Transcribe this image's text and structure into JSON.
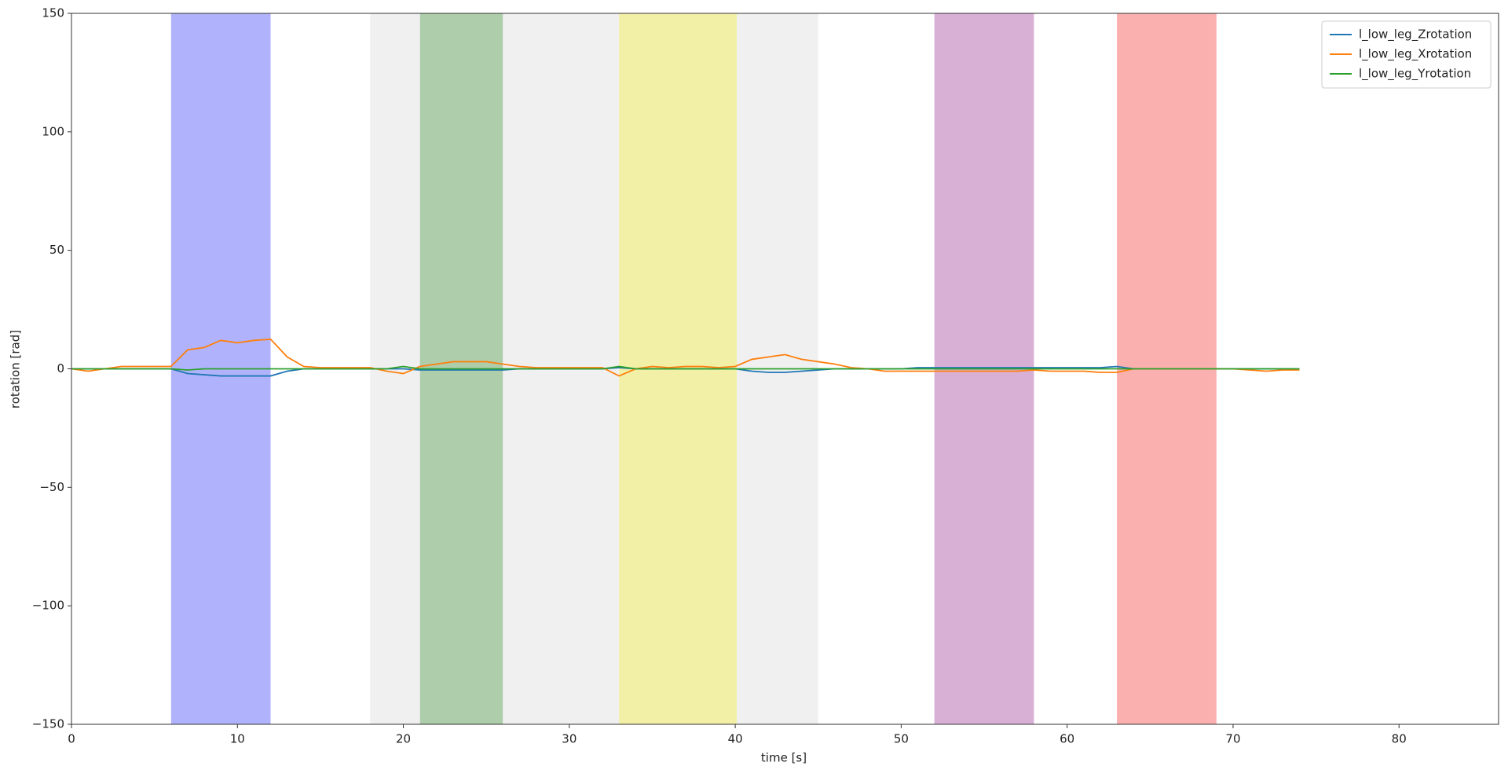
{
  "chart_data": {
    "type": "line",
    "xlabel": "time [s]",
    "ylabel": "rotation [rad]",
    "xlim": [
      0,
      86
    ],
    "ylim": [
      -150,
      150
    ],
    "xticks": [
      0,
      10,
      20,
      30,
      40,
      50,
      60,
      70,
      80
    ],
    "yticks": [
      {
        "value": -150,
        "label": "−150"
      },
      {
        "value": -100,
        "label": "−100"
      },
      {
        "value": -50,
        "label": "−50"
      },
      0,
      50,
      100,
      150
    ],
    "legend": "upper right",
    "spans": [
      {
        "start": 6,
        "end": 12,
        "color": "#b0b3fc"
      },
      {
        "start": 18,
        "end": 21,
        "color": "#f0f0f0"
      },
      {
        "start": 21,
        "end": 26,
        "color": "#aecdab"
      },
      {
        "start": 26,
        "end": 33,
        "color": "#f0f0f0"
      },
      {
        "start": 33,
        "end": 40.1,
        "color": "#f1f0a6"
      },
      {
        "start": 40.1,
        "end": 45,
        "color": "#f0f0f0"
      },
      {
        "start": 52,
        "end": 58,
        "color": "#d8b0d6"
      },
      {
        "start": 63,
        "end": 69,
        "color": "#fbb0b0"
      }
    ],
    "x": [
      0,
      1,
      2,
      3,
      4,
      5,
      6,
      7,
      8,
      9,
      10,
      11,
      12,
      13,
      14,
      15,
      16,
      17,
      18,
      19,
      20,
      21,
      22,
      23,
      24,
      25,
      26,
      27,
      28,
      29,
      30,
      31,
      32,
      33,
      34,
      35,
      36,
      37,
      38,
      39,
      40,
      41,
      42,
      43,
      44,
      45,
      46,
      47,
      48,
      49,
      50,
      51,
      52,
      53,
      54,
      55,
      56,
      57,
      58,
      59,
      60,
      61,
      62,
      63,
      64,
      65,
      66,
      67,
      68,
      69,
      70,
      71,
      72,
      73,
      74
    ],
    "series": [
      {
        "name": "l_low_leg_Zrotation",
        "color": "#1f77b4",
        "values": [
          0,
          0,
          0,
          0,
          0,
          0,
          0,
          -2,
          -2.5,
          -3,
          -3,
          -3,
          -3,
          -1,
          0,
          0,
          0,
          0,
          0,
          0,
          0,
          -0.5,
          -0.5,
          -0.5,
          -0.5,
          -0.5,
          -0.5,
          0,
          0,
          0,
          0,
          0,
          0,
          0.5,
          0,
          0,
          0,
          0,
          0,
          0,
          0,
          -1,
          -1.5,
          -1.5,
          -1,
          -0.5,
          0,
          0,
          0,
          0,
          0,
          0.5,
          0.5,
          0.5,
          0.5,
          0.5,
          0.5,
          0.5,
          0.5,
          0.5,
          0.5,
          0.5,
          0.5,
          1,
          0,
          0,
          0,
          0,
          0,
          0,
          0,
          0,
          0,
          0,
          0
        ]
      },
      {
        "name": "l_low_leg_Xrotation",
        "color": "#ff7f0e",
        "values": [
          0,
          -1,
          0,
          1,
          1,
          1,
          1,
          8,
          9,
          12,
          11,
          12,
          12.5,
          5,
          1,
          0.5,
          0.5,
          0.5,
          0.5,
          -1,
          -2,
          1,
          2,
          3,
          3,
          3,
          2,
          1,
          0.5,
          0.5,
          0.5,
          0.5,
          0.5,
          -3,
          0,
          1,
          0.5,
          1,
          1,
          0.5,
          1,
          4,
          5,
          6,
          4,
          3,
          2,
          0.5,
          0,
          -1,
          -1,
          -1,
          -1,
          -1,
          -1,
          -1,
          -1,
          -1,
          -0.5,
          -1,
          -1,
          -1,
          -1.5,
          -1.5,
          0,
          0,
          0,
          0,
          0,
          0,
          0,
          -0.5,
          -1,
          -0.5,
          -0.5
        ]
      },
      {
        "name": "l_low_leg_Yrotation",
        "color": "#2ca02c",
        "values": [
          0,
          0,
          0,
          0,
          0,
          0,
          0,
          -0.5,
          0,
          0,
          0,
          0,
          0,
          0,
          0,
          0,
          0,
          0,
          0,
          0,
          1,
          0,
          0,
          0,
          0,
          0,
          0,
          0,
          0,
          0,
          0,
          0,
          0,
          1,
          0,
          0,
          0,
          0,
          0,
          0,
          0,
          0,
          0,
          0,
          0,
          0,
          0,
          0,
          0,
          0,
          0,
          0,
          0,
          0,
          0,
          0,
          0,
          0,
          0,
          0,
          0,
          0,
          0,
          0,
          0,
          0,
          0,
          0,
          0,
          0,
          0,
          0,
          0,
          0,
          0
        ]
      }
    ]
  }
}
